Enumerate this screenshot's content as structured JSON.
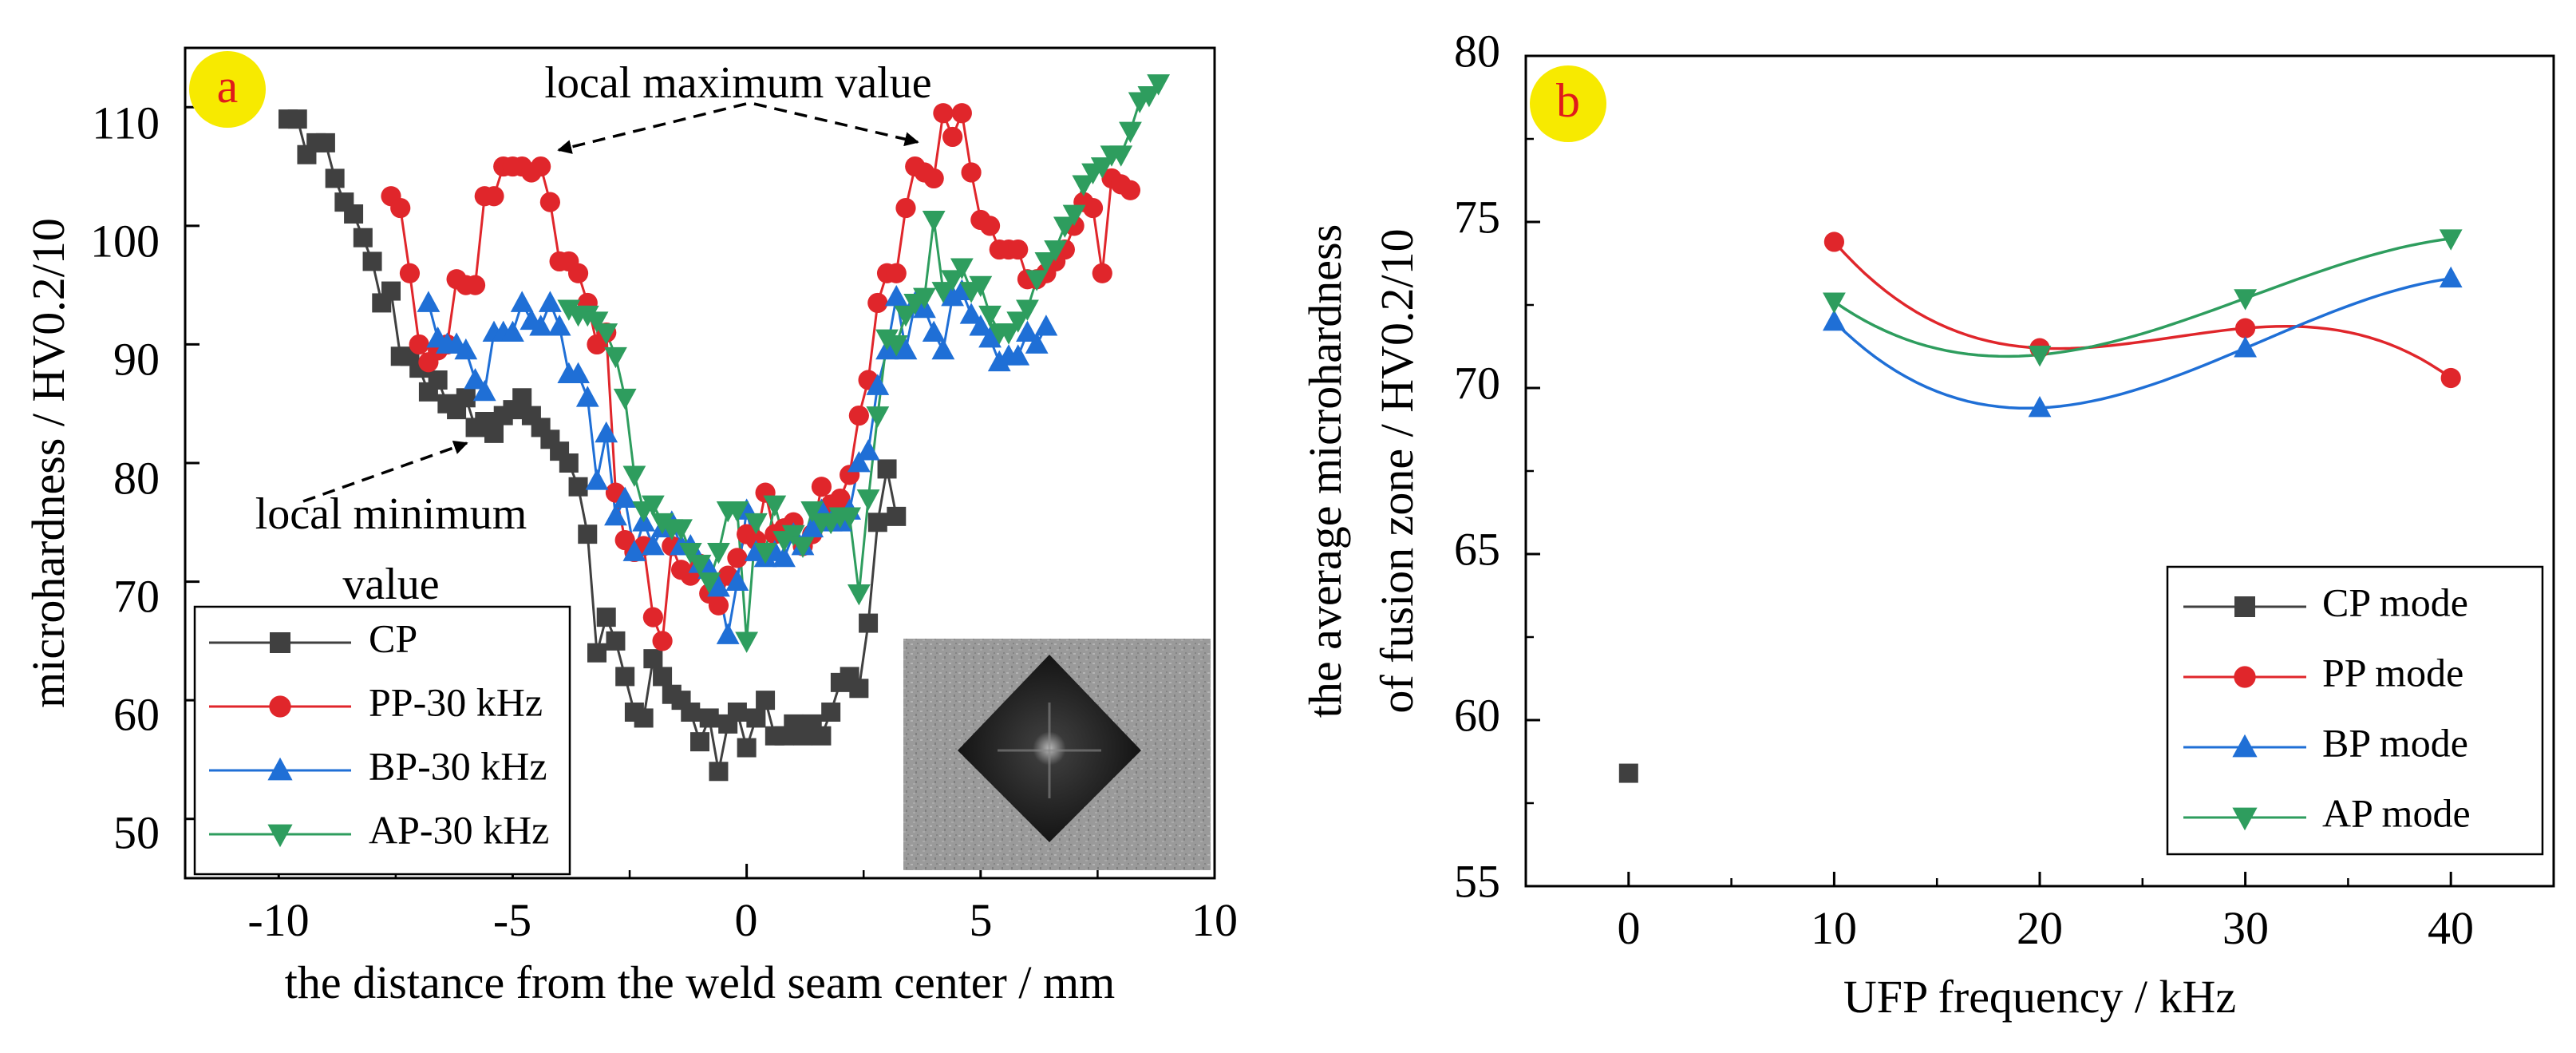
{
  "chart_data": [
    {
      "id": "a",
      "type": "line",
      "badge": "a",
      "xlabel": "the distance from the weld seam center / mm",
      "ylabel": "microhardness / HV0.2/10",
      "xlim": [
        -12,
        10
      ],
      "ylim": [
        45,
        115
      ],
      "xticks": [
        -10,
        -5,
        0,
        5,
        10
      ],
      "yticks": [
        50,
        60,
        70,
        80,
        90,
        100,
        110
      ],
      "annotations": [
        "local maximum value",
        "local minimum",
        "value"
      ],
      "inset": "hardness-indent-micrograph",
      "series": [
        {
          "name": "CP",
          "color": "#404040",
          "marker": "square",
          "x": [
            -9.8,
            -9.6,
            -9.4,
            -9.2,
            -9.0,
            -8.8,
            -8.6,
            -8.4,
            -8.2,
            -8.0,
            -7.8,
            -7.6,
            -7.4,
            -7.2,
            -7.0,
            -6.8,
            -6.6,
            -6.4,
            -6.2,
            -6.0,
            -5.8,
            -5.6,
            -5.4,
            -5.2,
            -5.0,
            -4.8,
            -4.6,
            -4.4,
            -4.2,
            -4.0,
            -3.8,
            -3.6,
            -3.4,
            -3.2,
            -3.0,
            -2.8,
            -2.6,
            -2.4,
            -2.2,
            -2.0,
            -1.8,
            -1.6,
            -1.4,
            -1.2,
            -1.0,
            -0.8,
            -0.6,
            -0.4,
            -0.2,
            0.0,
            0.2,
            0.4,
            0.6,
            0.8,
            1.0,
            1.2,
            1.4,
            1.6,
            1.8,
            2.0,
            2.2,
            2.4,
            2.6,
            2.8,
            3.0,
            3.2
          ],
          "y": [
            109,
            109,
            106,
            107,
            107,
            104,
            102,
            101,
            99,
            97,
            93.5,
            94.5,
            89,
            89,
            88,
            86,
            87,
            85,
            84.5,
            85.5,
            83,
            83.5,
            82.5,
            84,
            84.5,
            85.5,
            84,
            83,
            82,
            81,
            80,
            78,
            74,
            64,
            67,
            65,
            62,
            59,
            58.5,
            63.5,
            62,
            60.5,
            60,
            59,
            56.5,
            58.5,
            54,
            58,
            59,
            56,
            58.5,
            60,
            57,
            57,
            58,
            57,
            58,
            57,
            59,
            61.5,
            62,
            61,
            66.5,
            75,
            79.5,
            75.5
          ]
        },
        {
          "name": "PP-30 kHz",
          "color": "#e0262b",
          "marker": "circle",
          "x": [
            -7.6,
            -7.4,
            -7.2,
            -7.0,
            -6.8,
            -6.6,
            -6.4,
            -6.2,
            -6.0,
            -5.8,
            -5.6,
            -5.4,
            -5.2,
            -5.0,
            -4.8,
            -4.6,
            -4.4,
            -4.2,
            -4.0,
            -3.8,
            -3.6,
            -3.4,
            -3.2,
            -3.0,
            -2.8,
            -2.6,
            -2.4,
            -2.2,
            -2.0,
            -1.8,
            -1.6,
            -1.4,
            -1.2,
            -1.0,
            -0.8,
            -0.6,
            -0.4,
            -0.2,
            0.0,
            0.2,
            0.4,
            0.6,
            0.8,
            1.0,
            1.2,
            1.4,
            1.6,
            1.8,
            2.0,
            2.2,
            2.4,
            2.6,
            2.8,
            3.0,
            3.2,
            3.4,
            3.6,
            3.8,
            4.0,
            4.2,
            4.4,
            4.6,
            4.8,
            5.0,
            5.2,
            5.4,
            5.6,
            5.8,
            6.0,
            6.2,
            6.4,
            6.6,
            6.8,
            7.0,
            7.2,
            7.4,
            7.6,
            7.8,
            8.0,
            8.2
          ],
          "y": [
            102.5,
            101.5,
            96,
            90,
            88.5,
            89.5,
            90,
            95.5,
            95,
            95,
            102.5,
            102.5,
            105,
            105,
            105,
            104.5,
            105,
            102,
            97,
            97,
            96,
            93.5,
            90,
            91,
            77.5,
            73.5,
            72.5,
            73,
            67,
            65,
            73,
            71,
            70.5,
            71.5,
            69,
            68,
            70.5,
            72,
            74,
            73.5,
            77.5,
            74,
            74.5,
            75,
            73,
            74,
            78,
            76.5,
            77,
            79,
            84,
            87,
            93.5,
            96,
            96,
            101.5,
            105,
            104.5,
            104,
            109.5,
            107.5,
            109.5,
            104.5,
            100.5,
            100,
            98,
            98,
            98,
            95.5,
            95.5,
            96,
            97,
            98,
            100,
            102,
            101.5,
            96,
            104,
            103.5,
            103
          ]
        },
        {
          "name": "BP-30 kHz",
          "color": "#1f6fd6",
          "marker": "triangle-up",
          "x": [
            -6.8,
            -6.6,
            -6.4,
            -6.2,
            -6.0,
            -5.8,
            -5.6,
            -5.4,
            -5.2,
            -5.0,
            -4.8,
            -4.6,
            -4.4,
            -4.2,
            -4.0,
            -3.8,
            -3.6,
            -3.4,
            -3.2,
            -3.0,
            -2.8,
            -2.6,
            -2.4,
            -2.2,
            -2.0,
            -1.8,
            -1.6,
            -1.4,
            -1.2,
            -1.0,
            -0.8,
            -0.6,
            -0.4,
            -0.2,
            0.0,
            0.2,
            0.4,
            0.6,
            0.8,
            1.0,
            1.2,
            1.4,
            1.6,
            1.8,
            2.0,
            2.2,
            2.4,
            2.6,
            2.8,
            3.0,
            3.2,
            3.4,
            3.6,
            3.8,
            4.0,
            4.2,
            4.4,
            4.6,
            4.8,
            5.0,
            5.2,
            5.4,
            5.6,
            5.8,
            6.0,
            6.2,
            6.4
          ],
          "y": [
            93.5,
            90.5,
            90,
            90,
            89.5,
            87,
            86,
            91,
            91,
            91,
            93.5,
            92,
            91.5,
            93.5,
            91.5,
            87.5,
            87.5,
            85.5,
            78.5,
            82.5,
            75.5,
            77,
            72.5,
            75,
            73,
            74.5,
            75,
            73,
            73,
            71.5,
            71,
            69.5,
            65.5,
            70,
            76,
            72.5,
            72,
            72.5,
            72,
            74,
            73,
            74.5,
            76,
            75,
            75,
            76,
            80,
            81,
            86.5,
            89.5,
            94,
            89.5,
            93.5,
            93,
            91,
            89.5,
            94,
            94.5,
            92.5,
            91.5,
            90.5,
            88.5,
            89,
            89,
            91,
            90,
            91.5
          ]
        },
        {
          "name": "AP-30 kHz",
          "color": "#2e9d5e",
          "marker": "triangle-down",
          "x": [
            -3.8,
            -3.6,
            -3.4,
            -3.2,
            -3.0,
            -2.8,
            -2.6,
            -2.4,
            -2.2,
            -2.0,
            -1.8,
            -1.6,
            -1.4,
            -1.2,
            -1.0,
            -0.8,
            -0.6,
            -0.4,
            -0.2,
            0.0,
            0.2,
            0.4,
            0.6,
            0.8,
            1.0,
            1.2,
            1.4,
            1.6,
            1.8,
            2.0,
            2.2,
            2.4,
            2.6,
            2.8,
            3.0,
            3.2,
            3.4,
            3.6,
            3.8,
            4.0,
            4.2,
            4.4,
            4.6,
            4.8,
            5.0,
            5.2,
            5.4,
            5.6,
            5.8,
            6.0,
            6.2,
            6.4,
            6.6,
            6.8,
            7.0,
            7.2,
            7.4,
            7.6,
            7.8,
            8.0,
            8.2,
            8.4,
            8.6,
            8.8
          ],
          "y": [
            93,
            92.5,
            92.5,
            92,
            91,
            89,
            85.5,
            79,
            76,
            76.5,
            75,
            74.5,
            74.5,
            72.5,
            71.5,
            70,
            72.5,
            76,
            76,
            65,
            75,
            72.5,
            76.5,
            73.5,
            74,
            73,
            76,
            75,
            75,
            75.5,
            75.5,
            69,
            77,
            84,
            90.5,
            90,
            92.5,
            93.5,
            94,
            100.5,
            94.5,
            95.5,
            96.5,
            94.5,
            95,
            92.5,
            91,
            91,
            92,
            93,
            95.5,
            97,
            98,
            100,
            101,
            103.5,
            104.5,
            105,
            106,
            106,
            108,
            110.5,
            111,
            112
          ]
        }
      ]
    },
    {
      "id": "b",
      "type": "scatter",
      "badge": "b",
      "xlabel": "UFP frequency / kHz",
      "ylabel": "the average microhardness of fusion zone / HV0.2/10",
      "ylabel_lines": [
        "the average microhardness",
        "of fusion zone / HV0.2/10"
      ],
      "xlim": [
        -5,
        45
      ],
      "ylim": [
        55,
        80
      ],
      "xticks": [
        0,
        10,
        20,
        30,
        40
      ],
      "yticks": [
        55,
        60,
        65,
        70,
        75,
        80
      ],
      "series": [
        {
          "name": "CP mode",
          "color": "#404040",
          "marker": "square",
          "x": [
            0
          ],
          "y": [
            58.4
          ]
        },
        {
          "name": "PP mode",
          "color": "#e0262b",
          "marker": "circle",
          "x": [
            10,
            20,
            30,
            40
          ],
          "y": [
            74.4,
            71.2,
            71.8,
            70.3
          ]
        },
        {
          "name": "BP mode",
          "color": "#1f6fd6",
          "marker": "triangle-up",
          "x": [
            10,
            20,
            30,
            40
          ],
          "y": [
            72.0,
            69.4,
            71.2,
            73.3
          ]
        },
        {
          "name": "AP mode",
          "color": "#2e9d5e",
          "marker": "triangle-down",
          "x": [
            10,
            20,
            30,
            40
          ],
          "y": [
            72.6,
            71.0,
            72.7,
            74.5
          ]
        }
      ]
    }
  ],
  "style": {
    "badge_fill": "#f7ea00",
    "badge_text_color": "#e01b1b",
    "axis_color": "#000000"
  }
}
